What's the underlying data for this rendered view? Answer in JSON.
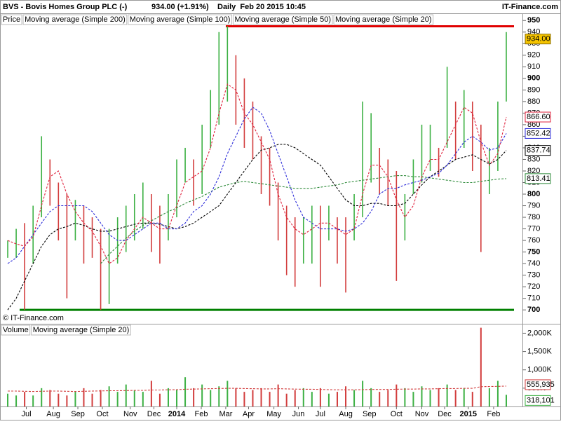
{
  "chart_data": {
    "type": "ohlc",
    "title": "BVS - Bovis Homes Group PLC (-)",
    "quote": "934.00 (+1.91%)",
    "period": "Daily  Feb 20 2015 10:45",
    "source": "IT-Finance.com",
    "copyright": "© IT-Finance.com",
    "price_label": "Price",
    "up_color": "#3cb043",
    "down_color": "#d23c3c",
    "ylim": [
      688,
      955
    ],
    "yticks": [
      700,
      710,
      720,
      730,
      740,
      750,
      760,
      770,
      780,
      790,
      800,
      810,
      820,
      830,
      840,
      850,
      860,
      870,
      880,
      890,
      900,
      910,
      920,
      930,
      940,
      950
    ],
    "xlim": [
      -0.5,
      59.5
    ],
    "xticks": [
      {
        "value": 2.2,
        "label": "Jul"
      },
      {
        "value": 5.4,
        "label": "Aug"
      },
      {
        "value": 8.3,
        "label": "Sep"
      },
      {
        "value": 11.2,
        "label": "Oct"
      },
      {
        "value": 14.5,
        "label": "Nov"
      },
      {
        "value": 17.3,
        "label": "Dec"
      },
      {
        "value": 20,
        "label": "2014"
      },
      {
        "value": 22.9,
        "label": "Feb"
      },
      {
        "value": 25.8,
        "label": "Mar"
      },
      {
        "value": 28.5,
        "label": "Apr"
      },
      {
        "value": 31.5,
        "label": "May"
      },
      {
        "value": 34.4,
        "label": "Jun"
      },
      {
        "value": 37,
        "label": "Jul"
      },
      {
        "value": 40,
        "label": "Aug"
      },
      {
        "value": 42.8,
        "label": "Sep"
      },
      {
        "value": 46,
        "label": "Oct"
      },
      {
        "value": 49,
        "label": "Nov"
      },
      {
        "value": 51.7,
        "label": "Dec"
      },
      {
        "value": 54.5,
        "label": "2015"
      },
      {
        "value": 57.5,
        "label": "Feb"
      }
    ],
    "high": [
      760,
      770,
      775,
      790,
      850,
      830,
      810,
      800,
      795,
      790,
      780,
      770,
      770,
      780,
      790,
      800,
      810,
      800,
      790,
      800,
      830,
      840,
      830,
      860,
      890,
      940,
      945,
      920,
      900,
      880,
      850,
      840,
      810,
      790,
      780,
      780,
      790,
      790,
      790,
      780,
      780,
      800,
      880,
      870,
      840,
      830,
      820,
      800,
      830,
      860,
      860,
      840,
      910,
      880,
      890,
      880,
      860,
      840,
      880,
      940
    ],
    "low": [
      745,
      745,
      700,
      740,
      780,
      790,
      760,
      710,
      760,
      740,
      745,
      700,
      705,
      740,
      750,
      760,
      770,
      750,
      740,
      760,
      780,
      810,
      790,
      800,
      840,
      860,
      880,
      860,
      840,
      830,
      800,
      790,
      760,
      730,
      720,
      740,
      740,
      720,
      760,
      740,
      715,
      760,
      780,
      810,
      800,
      790,
      725,
      760,
      800,
      810,
      820,
      815,
      840,
      830,
      840,
      820,
      750,
      800,
      820,
      880
    ],
    "last": {
      "value": 934,
      "label": "934.00"
    },
    "resistance": {
      "value": 945,
      "color": "#e00000"
    },
    "support": {
      "value": 700,
      "color": "#008000"
    },
    "series": [
      {
        "name": "Moving average (Simple 200)",
        "color": "#2e8b3a",
        "values": [
          null,
          null,
          null,
          null,
          null,
          null,
          null,
          null,
          null,
          null,
          null,
          740,
          748,
          755,
          762,
          768,
          773,
          777,
          781,
          785,
          788,
          792,
          795,
          798,
          802,
          806,
          808,
          810,
          811,
          810,
          809,
          808,
          807,
          806,
          805,
          805,
          805,
          806,
          807,
          808,
          810,
          811,
          812,
          813,
          814,
          815,
          816,
          816,
          815,
          815,
          814,
          813,
          812,
          811,
          810,
          810,
          811,
          812,
          813,
          813.41
        ],
        "last": {
          "value": 813.41,
          "label": "813.41"
        }
      },
      {
        "name": "Moving average (Simple 100)",
        "color": "#000000",
        "values": [
          700,
          710,
          725,
          740,
          755,
          765,
          770,
          772,
          775,
          773,
          770,
          768,
          768,
          770,
          772,
          774,
          775,
          775,
          774,
          772,
          770,
          772,
          775,
          780,
          785,
          790,
          800,
          810,
          820,
          830,
          838,
          840,
          843,
          843,
          840,
          835,
          830,
          825,
          815,
          805,
          795,
          790,
          790,
          792,
          792,
          790,
          790,
          792,
          800,
          808,
          815,
          820,
          825,
          830,
          832,
          834,
          830,
          826,
          830,
          837.74
        ],
        "last": {
          "value": 837.74,
          "label": "837.74"
        }
      },
      {
        "name": "Moving average (Simple 50)",
        "color": "#2b2bd9",
        "values": [
          740,
          745,
          755,
          765,
          775,
          785,
          790,
          790,
          790,
          790,
          785,
          775,
          765,
          760,
          760,
          765,
          770,
          775,
          775,
          770,
          770,
          775,
          785,
          790,
          800,
          815,
          835,
          850,
          865,
          875,
          870,
          855,
          835,
          815,
          795,
          780,
          775,
          770,
          770,
          770,
          768,
          770,
          775,
          785,
          800,
          805,
          805,
          808,
          810,
          812,
          815,
          818,
          825,
          835,
          845,
          850,
          845,
          838,
          840,
          852.42
        ],
        "last": {
          "value": 852.42,
          "label": "852.42"
        }
      },
      {
        "name": "Moving average (Simple 20)",
        "color": "#e0203c",
        "values": [
          760,
          757,
          755,
          763,
          790,
          815,
          820,
          800,
          785,
          775,
          768,
          755,
          740,
          745,
          760,
          770,
          780,
          775,
          770,
          770,
          790,
          810,
          815,
          820,
          840,
          870,
          895,
          890,
          870,
          860,
          845,
          830,
          800,
          780,
          770,
          765,
          770,
          775,
          775,
          770,
          765,
          770,
          800,
          825,
          825,
          815,
          795,
          780,
          790,
          815,
          830,
          830,
          845,
          860,
          875,
          870,
          845,
          825,
          835,
          866.6
        ],
        "last": {
          "value": 866.6,
          "label": "866.60"
        }
      }
    ],
    "volume": {
      "name": "Volume",
      "ylim": [
        0,
        2200
      ],
      "yticks": [
        {
          "value": 500,
          "label": "500K"
        },
        {
          "value": 1000,
          "label": "1,000K"
        },
        {
          "value": 1500,
          "label": "1,500K"
        },
        {
          "value": 2000,
          "label": "2,000K"
        }
      ],
      "values": [
        350,
        300,
        400,
        300,
        500,
        450,
        350,
        300,
        400,
        500,
        350,
        450,
        550,
        400,
        600,
        450,
        400,
        700,
        350,
        500,
        450,
        800,
        500,
        600,
        450,
        550,
        700,
        500,
        400,
        450,
        500,
        400,
        600,
        350,
        450,
        500,
        400,
        500,
        350,
        400,
        550,
        450,
        700,
        500,
        400,
        450,
        600,
        500,
        400,
        550,
        450,
        500,
        600,
        450,
        500,
        400,
        2150,
        500,
        700,
        318.101
      ],
      "last": {
        "value": 318.101,
        "label": "318,101"
      },
      "ma": {
        "name": "Moving average (Simple 20)",
        "color": "#d23c3c",
        "values": [
          420,
          420,
          415,
          410,
          415,
          420,
          420,
          415,
          410,
          415,
          420,
          425,
          430,
          430,
          435,
          440,
          440,
          450,
          450,
          455,
          460,
          470,
          475,
          480,
          485,
          490,
          495,
          495,
          490,
          485,
          480,
          480,
          485,
          480,
          475,
          470,
          470,
          465,
          460,
          455,
          455,
          455,
          460,
          465,
          465,
          465,
          470,
          475,
          475,
          480,
          480,
          485,
          490,
          490,
          495,
          495,
          540,
          545,
          550,
          555.935
        ],
        "last": {
          "value": 555.935,
          "label": "555,935"
        }
      }
    }
  }
}
